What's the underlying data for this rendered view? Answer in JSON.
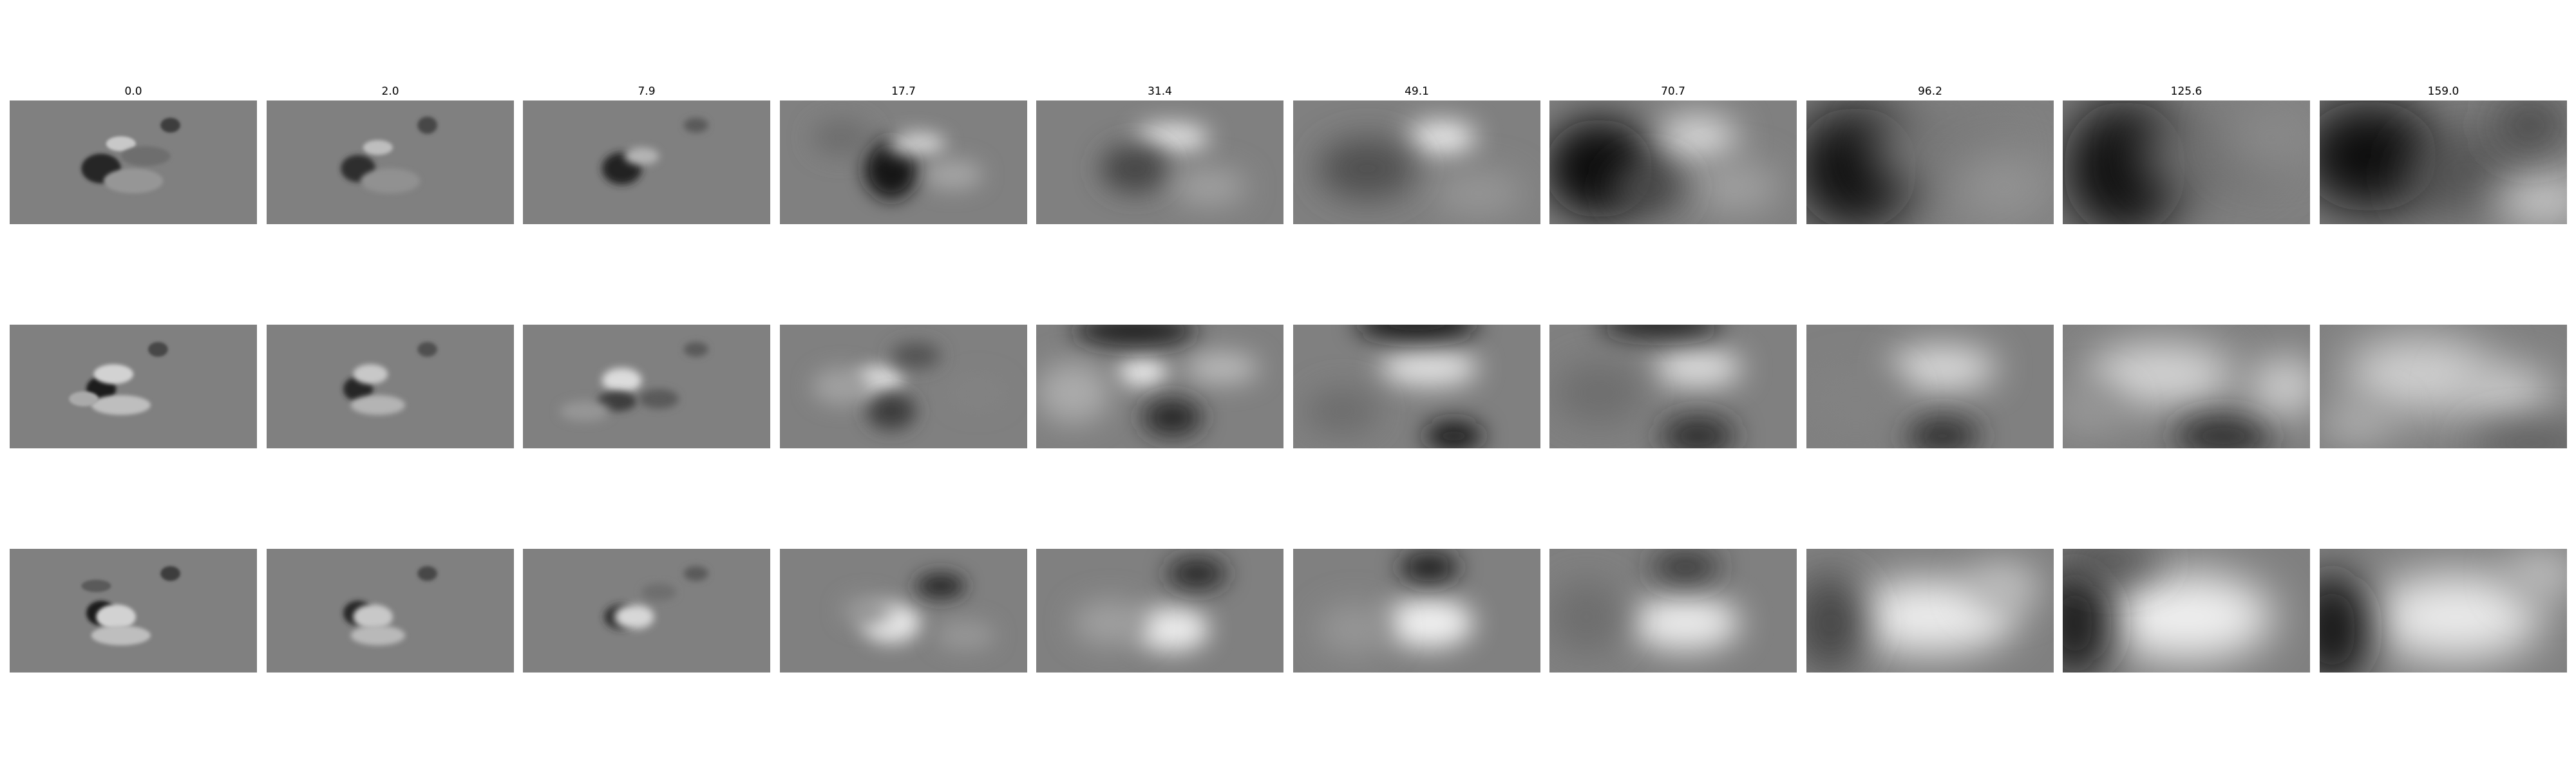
{
  "figure": {
    "column_titles": [
      "0.0",
      "2.0",
      "7.9",
      "17.7",
      "31.4",
      "49.1",
      "70.7",
      "96.2",
      "125.6",
      "159.0"
    ],
    "rows": 3,
    "colormap": "gray",
    "background": "#808080"
  }
}
